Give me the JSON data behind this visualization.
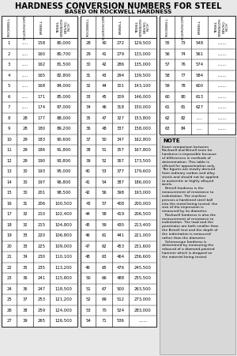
{
  "title": "HARDNESS CONVERSION NUMBERS FOR STEEL",
  "subtitle": "BASED ON ROCKWELL HARDNESS",
  "col1": [
    [
      "1",
      ".....",
      "158",
      "80,000"
    ],
    [
      "2",
      ".....",
      "160",
      "80,700"
    ],
    [
      "3",
      ".....",
      "162",
      "81,500"
    ],
    [
      "4",
      ".....",
      "165",
      "82,800"
    ],
    [
      "5",
      ".....",
      "168",
      "84,000"
    ],
    [
      "6",
      ".....",
      "171",
      "85,000"
    ],
    [
      "7",
      ".....",
      "174",
      "87,000"
    ],
    [
      "8",
      "28",
      "177",
      "88,000"
    ],
    [
      "9",
      "28",
      "180",
      "89,200"
    ],
    [
      "10",
      "29",
      "183",
      "90,600"
    ],
    [
      "11",
      "29",
      "186",
      "91,800"
    ],
    [
      "12",
      "29",
      "190",
      "93,800"
    ],
    [
      "13",
      "30",
      "193",
      "95,000"
    ],
    [
      "14",
      "30",
      "197",
      "96,800"
    ],
    [
      "15",
      "30",
      "201",
      "98,500"
    ],
    [
      "16",
      "31",
      "206",
      "100,500"
    ],
    [
      "17",
      "32",
      "210",
      "102,400"
    ],
    [
      "18",
      "32",
      "215",
      "104,800"
    ],
    [
      "19",
      "33",
      "220",
      "106,800"
    ],
    [
      "20",
      "33",
      "225",
      "109,000"
    ],
    [
      "21",
      "34",
      "230",
      "110,100"
    ],
    [
      "22",
      "35",
      "235",
      "113,200"
    ],
    [
      "23",
      "36",
      "241",
      "115,800"
    ],
    [
      "24",
      "36",
      "247",
      "118,500"
    ],
    [
      "25",
      "37",
      "253",
      "121,200"
    ],
    [
      "26",
      "38",
      "259",
      "124,000"
    ],
    [
      "27",
      "39",
      "265",
      "126,500"
    ]
  ],
  "col2": [
    [
      "28",
      "40",
      "272",
      "129,500"
    ],
    [
      "29",
      "41",
      "279",
      "133,000"
    ],
    [
      "30",
      "42",
      "286",
      "135,000"
    ],
    [
      "31",
      "43",
      "294",
      "139,500"
    ],
    [
      "32",
      "44",
      "301",
      "143,100"
    ],
    [
      "33",
      "45",
      "309",
      "146,000"
    ],
    [
      "34",
      "46",
      "318",
      "150,000"
    ],
    [
      "35",
      "47",
      "327",
      "153,800"
    ],
    [
      "36",
      "48",
      "337",
      "158,000"
    ],
    [
      "37",
      "50",
      "347",
      "162,800"
    ],
    [
      "38",
      "51",
      "357",
      "167,800"
    ],
    [
      "39",
      "52",
      "367",
      "173,500"
    ],
    [
      "40",
      "53",
      "377",
      "179,600"
    ],
    [
      "41",
      "54",
      "387",
      "186,000"
    ],
    [
      "42",
      "56",
      "398",
      "193,000"
    ],
    [
      "43",
      "57",
      "408",
      "200,000"
    ],
    [
      "44",
      "58",
      "419",
      "206,500"
    ],
    [
      "45",
      "59",
      "430",
      "213,400"
    ],
    [
      "46",
      "61",
      "441",
      "221,000"
    ],
    [
      "47",
      "62",
      "453",
      "231,600"
    ],
    [
      "48",
      "63",
      "464",
      "236,600"
    ],
    [
      "49",
      "65",
      "476",
      "245,500"
    ],
    [
      "50",
      "66",
      "488",
      "255,500"
    ],
    [
      "51",
      "67",
      "500",
      "263,500"
    ],
    [
      "52",
      "69",
      "512",
      "273,000"
    ],
    [
      "53",
      "70",
      "524",
      "283,000"
    ],
    [
      "54",
      "71",
      "536",
      "......."
    ]
  ],
  "col3": [
    [
      "55",
      "73",
      "548",
      "......."
    ],
    [
      "56",
      "74",
      "561",
      "......."
    ],
    [
      "57",
      "76",
      "574",
      "......."
    ],
    [
      "58",
      "77",
      "584",
      "......."
    ],
    [
      "59",
      "78",
      "600",
      "......."
    ],
    [
      "60",
      "80",
      "613",
      "......."
    ],
    [
      "61",
      "81",
      "627",
      "......."
    ],
    [
      "62",
      "82",
      ".....",
      "......."
    ],
    [
      "63",
      "84",
      ".....",
      "......."
    ]
  ],
  "note_lines": [
    "Exact comparison between Rockwell and Brinell tests for",
    "hardness is impossible because of differences in methods of",
    "determination. This table is",
    "offered for approximation only.",
    "The figures are mostly derived",
    "from ordinary carbon and alloy",
    "steels and should not be applied",
    "to austenitic or highly alloyed",
    "steels.",
    "   Brinell hardness is the",
    "measurement of resistance to",
    "indentation. The machine",
    "presses a hardened steel ball",
    "into the metal being tested; the",
    "size of the impression is",
    "measured by its diameter.",
    "   Rockwell hardness is also the",
    "measurement of resistance to",
    "indentation. The load and the",
    "penetrator are both smaller than",
    "the Brinell test and the depth of",
    "the indentation is measured",
    "rather than the diameter.",
    "   Scleroscope hardness is",
    "determined by measuring the",
    "rebound of a diamond-pointed",
    "hammer which is dropped on",
    "the material being tested."
  ],
  "bg_color": "#e8e8e8",
  "table_bg": "#ffffff",
  "note_bg": "#d8d8d8"
}
